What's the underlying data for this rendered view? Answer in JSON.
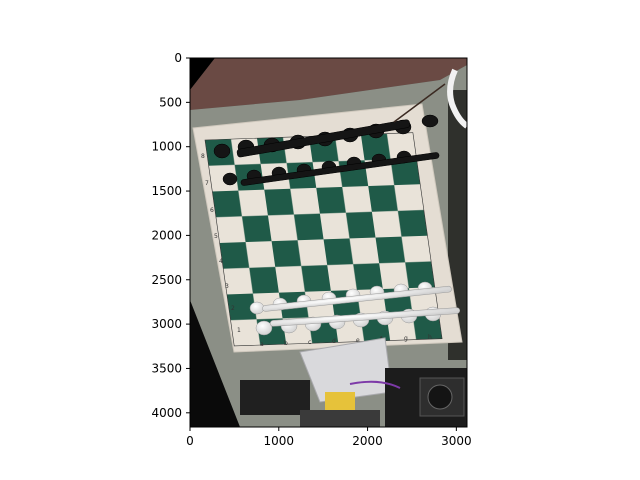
{
  "chart_data": {
    "type": "image",
    "title": "",
    "xlabel": "",
    "ylabel": "",
    "xlim": [
      0,
      3120
    ],
    "ylim": [
      4160,
      0
    ],
    "xticks": [
      0,
      1000,
      2000,
      3000
    ],
    "yticks": [
      0,
      500,
      1000,
      1500,
      2000,
      2500,
      3000,
      3500,
      4000
    ],
    "xtick_labels": [
      "0",
      "1000",
      "2000",
      "3000"
    ],
    "ytick_labels": [
      "0",
      "500",
      "1000",
      "1500",
      "2000",
      "2500",
      "3000",
      "3500",
      "4000"
    ],
    "grid": false,
    "image_content": {
      "subject": "chessboard photo (rotated) with pieces in starting position",
      "board_rank_labels": [
        "8",
        "7",
        "6",
        "5",
        "4",
        "3",
        "2",
        "1"
      ],
      "board_file_labels": [
        "a",
        "b",
        "c",
        "d",
        "e",
        "f",
        "g",
        "h"
      ],
      "colors": {
        "dark_square": "#1f5a48",
        "light_square": "#e9e3d9",
        "board_border": "#e4ddd3",
        "background_left": "#000000",
        "top_strip": "#6a4a44",
        "table": "#8b8f86",
        "robot": "#d9d9dc"
      }
    }
  }
}
